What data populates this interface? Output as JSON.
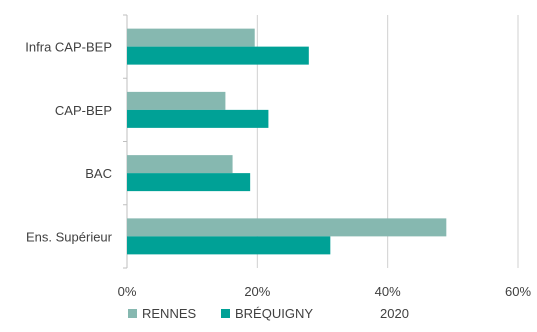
{
  "chart_data": {
    "type": "bar",
    "orientation": "horizontal",
    "categories": [
      "Infra CAP-BEP",
      "CAP-BEP",
      "BAC",
      "Ens. Supérieur"
    ],
    "series": [
      {
        "name": "RENNES",
        "color": "#86b8b0",
        "values": [
          19.6,
          15.1,
          16.2,
          49.0
        ]
      },
      {
        "name": "BRÉQUIGNY",
        "color": "#00a196",
        "values": [
          27.9,
          21.7,
          18.9,
          31.2
        ]
      }
    ],
    "xlim": [
      0,
      60
    ],
    "xticks": [
      0,
      20,
      40,
      60
    ],
    "tick_format": "{v}%",
    "grid": "vertical",
    "legend_position": "bottom",
    "legend_extra": "2020"
  }
}
